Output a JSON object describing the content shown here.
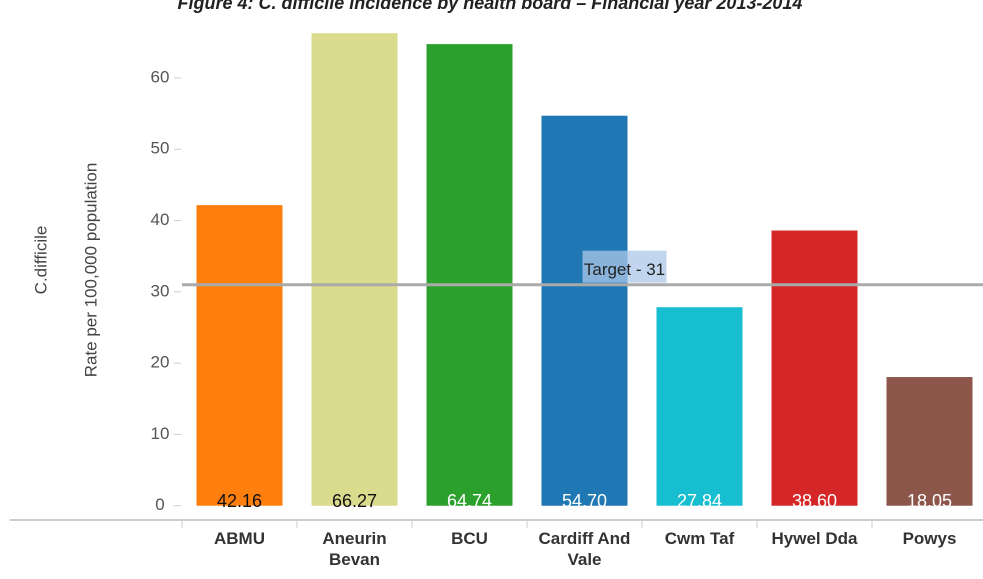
{
  "chart_data": {
    "type": "bar",
    "title": "Figure 4: C. difficile incidence by health board – Financial year 2013-2014",
    "y_label": "C.difficile",
    "y_sublabel": "Rate per 100,000 population",
    "categories": [
      "ABMU",
      "Aneurin Bevan",
      "BCU",
      "Cardiff And Vale",
      "Cwm Taf",
      "Hywel Dda",
      "Powys"
    ],
    "values": [
      42.16,
      66.27,
      64.74,
      54.7,
      27.84,
      38.6,
      18.05
    ],
    "value_labels": [
      "42.16",
      "66.27",
      "64.74",
      "54.70",
      "27.84",
      "38.60",
      "18.05"
    ],
    "colors": [
      "#ff7f0e",
      "#dbdb8d",
      "#2ca02c",
      "#1f77b4",
      "#17becf",
      "#d62728",
      "#8c564b"
    ],
    "target": 31,
    "target_label": "Target - 31",
    "ylim": [
      -2,
      67
    ],
    "yticks": [
      0,
      10,
      20,
      30,
      40,
      50,
      60
    ],
    "grid": false
  }
}
